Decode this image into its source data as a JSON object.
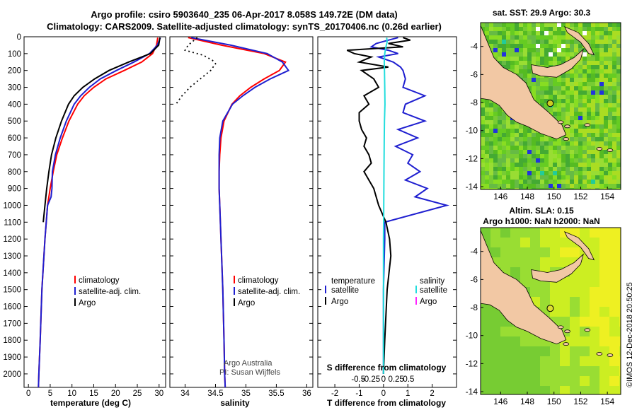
{
  "header": {
    "title_line1": "Argo profile: csiro 5903640_235 06-Apr-2017 8.058S 149.72E (DM data)",
    "title_line2": "Climatology: CARS2009. Satellite-adjusted climatology: synTS_20170406.nc (0.26d earlier)"
  },
  "depth_axis": {
    "ticks": [
      0,
      100,
      200,
      300,
      400,
      500,
      600,
      700,
      800,
      900,
      1000,
      1100,
      1200,
      1300,
      1400,
      1500,
      1600,
      1700,
      1800,
      1900,
      2000
    ],
    "range": [
      0,
      2080
    ]
  },
  "colors": {
    "climatology": "#ff0000",
    "satellite": "#1f1fd0",
    "argo": "#000000",
    "salinity_satellite": "#22dddd",
    "salinity_argo": "#ff22ff",
    "land": "#f2c8a4"
  },
  "chart_data": [
    {
      "type": "line",
      "id": "temperature-panel",
      "xlabel": "temperature (deg C)",
      "xlim": [
        -1,
        31.5
      ],
      "ylim_depth": [
        0,
        2080
      ],
      "xticks": [
        0,
        5,
        10,
        15,
        20,
        25,
        30
      ],
      "xtick_labels": [
        "0",
        "5",
        "10",
        "15",
        "20",
        "25",
        "30"
      ],
      "legend": [
        "climatology",
        "satellite-adj. clim.",
        "Argo"
      ],
      "legend_position": "bottom-right",
      "series": [
        {
          "name": "climatology",
          "color": "#ff0000",
          "depth": [
            5,
            50,
            100,
            150,
            200,
            250,
            300,
            350,
            400,
            500,
            600,
            700,
            800,
            900,
            1000,
            1200,
            1500,
            1800,
            2000,
            2080
          ],
          "values": [
            29.7,
            29.4,
            28.5,
            26.0,
            22.0,
            17.8,
            15.0,
            12.8,
            11.3,
            9.3,
            7.8,
            6.5,
            5.7,
            5.0,
            4.4,
            3.8,
            3.1,
            2.7,
            2.4,
            2.3
          ]
        },
        {
          "name": "satellite-adj. clim.",
          "color": "#1f1fd0",
          "depth": [
            5,
            50,
            100,
            150,
            200,
            250,
            300,
            350,
            400,
            500,
            600,
            700,
            800,
            900,
            950,
            1000,
            1200,
            1500,
            1800,
            2000,
            2080
          ],
          "values": [
            30.3,
            29.6,
            27.8,
            24.2,
            20.2,
            16.5,
            14.0,
            12.0,
            10.5,
            8.7,
            7.3,
            6.2,
            5.5,
            5.4,
            5.2,
            4.4,
            3.8,
            3.1,
            2.7,
            2.4,
            2.3
          ]
        },
        {
          "name": "Argo",
          "color": "#000000",
          "depth": [
            5,
            50,
            100,
            150,
            200,
            250,
            300,
            350,
            400,
            500,
            600,
            700,
            800,
            900,
            1000,
            1100
          ],
          "values": [
            30.2,
            29.9,
            28.0,
            23.0,
            18.5,
            15.2,
            12.5,
            10.5,
            9.2,
            7.6,
            6.3,
            5.3,
            4.7,
            4.2,
            3.8,
            3.4
          ]
        }
      ]
    },
    {
      "type": "line",
      "id": "salinity-panel",
      "xlabel": "salinity",
      "xlim": [
        33.75,
        36.1
      ],
      "ylim_depth": [
        0,
        2080
      ],
      "xticks": [
        34,
        34.5,
        35,
        35.5,
        36
      ],
      "xtick_labels": [
        "34",
        "34.5",
        "35",
        "35.5",
        "36"
      ],
      "legend": [
        "climatology",
        "satellite-adj. clim.",
        "Argo"
      ],
      "legend_position": "bottom-right",
      "series": [
        {
          "name": "climatology",
          "color": "#ff0000",
          "depth": [
            5,
            50,
            100,
            150,
            200,
            250,
            300,
            350,
            400,
            500,
            600,
            700,
            800,
            900,
            1000,
            1200,
            1500,
            1800,
            2000,
            2080
          ],
          "values": [
            34.05,
            34.6,
            35.3,
            35.65,
            35.55,
            35.3,
            35.08,
            34.9,
            34.77,
            34.64,
            34.59,
            34.57,
            34.56,
            34.56,
            34.57,
            34.59,
            34.62,
            34.64,
            34.65,
            34.66
          ]
        },
        {
          "name": "satellite-adj. clim.",
          "color": "#1f1fd0",
          "depth": [
            5,
            50,
            100,
            150,
            200,
            250,
            300,
            350,
            400,
            500,
            600,
            700,
            800,
            900,
            1000,
            1200,
            1500,
            1800,
            2000,
            2080
          ],
          "values": [
            34.1,
            34.75,
            35.35,
            35.6,
            35.7,
            35.4,
            35.15,
            34.95,
            34.78,
            34.62,
            34.57,
            34.56,
            34.56,
            34.56,
            34.57,
            34.59,
            34.62,
            34.64,
            34.65,
            34.66
          ]
        },
        {
          "name": "Argo",
          "color": "#000000",
          "style": "dotted",
          "depth": [
            5,
            50,
            80,
            110,
            140,
            160,
            200,
            250,
            300,
            350,
            400
          ],
          "values": [
            34.2,
            34.05,
            34.0,
            34.3,
            34.45,
            34.5,
            34.42,
            34.25,
            34.08,
            33.95,
            33.85
          ]
        }
      ],
      "annotations": [
        "Argo Australia",
        "PI: Susan Wijffels"
      ]
    },
    {
      "type": "line",
      "id": "difference-panel",
      "xlabel": "T difference from climatology",
      "xlim": [
        -2.7,
        3.0
      ],
      "xticks": [
        -2,
        -1,
        0,
        1,
        2
      ],
      "xtick_labels": [
        "-2",
        "-1",
        "0",
        "1",
        "2"
      ],
      "top_axis_label": "S difference from climatology",
      "top_ticks": [
        -0.5,
        -0.25,
        0,
        0.25,
        0.5
      ],
      "top_tick_labels": [
        "-0.5",
        "-0.25",
        "0",
        "0.25",
        "0.5"
      ],
      "ylim_depth": [
        0,
        2080
      ],
      "legend_left": {
        "title": "temperature",
        "items": [
          "satellite",
          "Argo"
        ]
      },
      "legend_right": {
        "title": "salinity",
        "items": [
          "satellite",
          "Argo"
        ]
      },
      "series": [
        {
          "name": "temperature satellite",
          "color": "#1f1fd0",
          "depth": [
            5,
            20,
            40,
            60,
            80,
            100,
            120,
            150,
            180,
            200,
            250,
            300,
            350,
            400,
            450,
            500,
            550,
            600,
            650,
            700,
            750,
            800,
            850,
            900,
            950,
            1000,
            1100,
            1200,
            1500,
            1800,
            2000
          ],
          "values": [
            0.6,
            0.2,
            -0.3,
            -0.5,
            0.2,
            0.6,
            -0.2,
            0.4,
            0.7,
            0.8,
            0.9,
            0.8,
            1.7,
            0.9,
            0.8,
            1.7,
            0.6,
            1.4,
            0.5,
            1.2,
            1.0,
            1.5,
            0.9,
            1.8,
            1.3,
            2.6,
            0.05,
            0.05,
            0.0,
            0.0,
            0.0
          ]
        },
        {
          "name": "temperature Argo",
          "color": "#000000",
          "depth": [
            5,
            20,
            40,
            60,
            80,
            100,
            120,
            150,
            180,
            200,
            250,
            300,
            350,
            400,
            450,
            500,
            550,
            600,
            650,
            700,
            750,
            800,
            850,
            900,
            950,
            1000,
            1100,
            1200,
            1300,
            1500,
            1800,
            2000
          ],
          "values": [
            0.8,
            1.1,
            0.2,
            0.8,
            -1.5,
            -1.2,
            -0.5,
            -1.0,
            0.2,
            -0.9,
            -0.4,
            -0.2,
            -0.8,
            -0.6,
            -1.0,
            -1.0,
            -0.9,
            -0.7,
            -0.8,
            -0.6,
            -0.5,
            -0.8,
            -0.6,
            -0.4,
            -0.3,
            -0.2,
            0.1,
            0.25,
            0.3,
            0.15,
            0.05,
            0.0
          ]
        },
        {
          "name": "salinity satellite",
          "color": "#22dddd",
          "depth": [
            5,
            30,
            60,
            100,
            150,
            200,
            300,
            400,
            500,
            600,
            800,
            1000,
            1200,
            1500,
            1800,
            2000
          ],
          "values": [
            0.13,
            0.15,
            0.1,
            0.05,
            0.03,
            0.04,
            0.05,
            0.06,
            0.04,
            0.03,
            0.02,
            0.01,
            0.0,
            0.0,
            0.0,
            0.0
          ]
        }
      ]
    },
    {
      "type": "heatmap",
      "id": "sst-map",
      "title": "sat. SST: 29.9 Argo: 30.3",
      "x_ticks": [
        146,
        148,
        150,
        152,
        154
      ],
      "x_tick_labels": [
        "146",
        "148",
        "150",
        "152",
        "154"
      ],
      "xlim": [
        144.5,
        155
      ],
      "y_ticks": [
        -4,
        -6,
        -8,
        -10,
        -12,
        -14
      ],
      "y_tick_labels": [
        "-4",
        "-6",
        "-8",
        "-10",
        "-12",
        "-14"
      ],
      "ylim": [
        -14.2,
        -2.3
      ],
      "float_lon": 149.72,
      "float_lat": -8.058
    },
    {
      "type": "heatmap",
      "id": "sla-map",
      "title_line1": "Altim. SLA: 0.15",
      "title_line2": "Argo h1000: NaN h2000: NaN",
      "x_ticks": [
        146,
        148,
        150,
        152,
        154
      ],
      "x_tick_labels": [
        "146",
        "148",
        "150",
        "152",
        "154"
      ],
      "xlim": [
        144.5,
        155
      ],
      "y_ticks": [
        -4,
        -6,
        -8,
        -10,
        -12,
        -14
      ],
      "y_tick_labels": [
        "-4",
        "-6",
        "-8",
        "-10",
        "-12",
        "-14"
      ],
      "ylim": [
        -14.2,
        -2.3
      ],
      "float_lon": 149.72,
      "float_lat": -8.058
    }
  ],
  "credit": "©IMOS 12-Dec-2018 20:50:25"
}
